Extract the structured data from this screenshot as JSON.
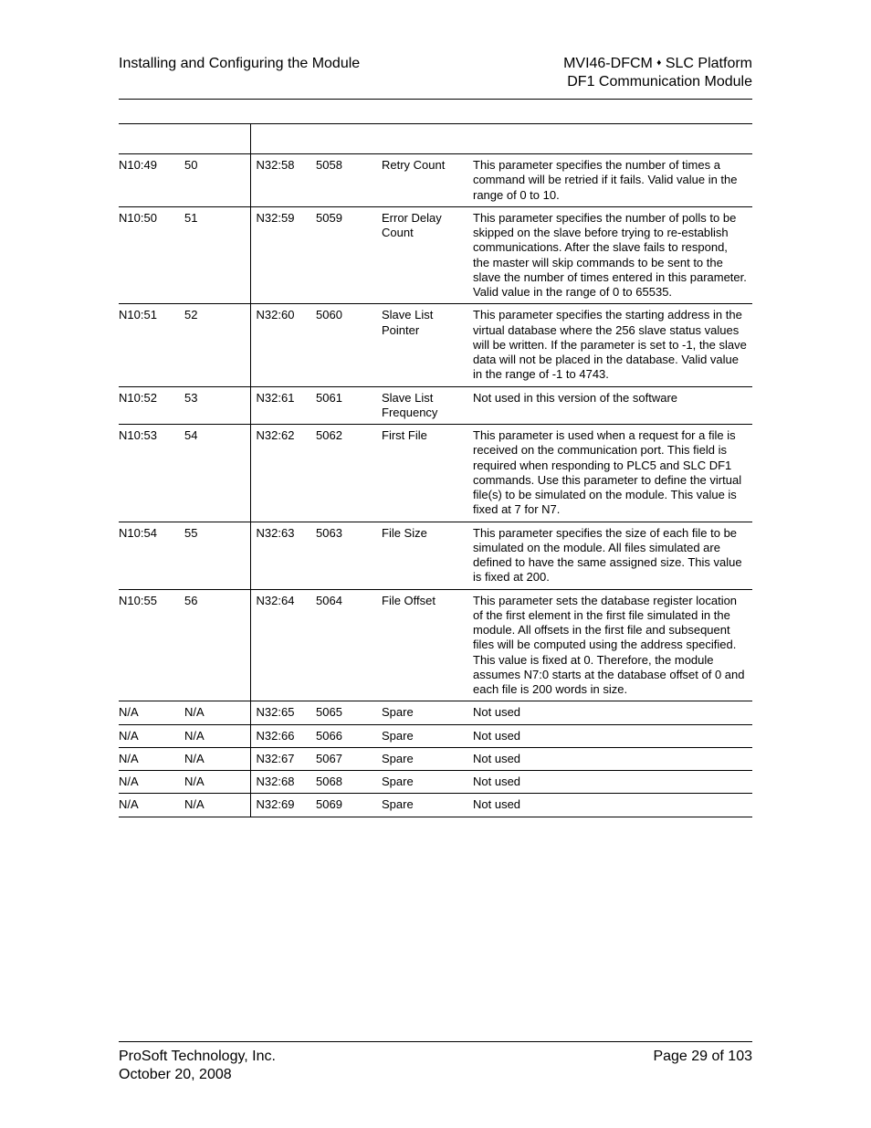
{
  "header": {
    "left": "Installing and Configuring the Module",
    "right1a": "MVI46-DFCM ",
    "right1b": " SLC Platform",
    "right2": "DF1 Communication Module"
  },
  "table": {
    "columns": [
      "",
      "",
      "",
      "",
      "",
      ""
    ],
    "rows": [
      {
        "c1": "N10:49",
        "c2": "50",
        "c3": "N32:58",
        "c4": "5058",
        "c5": "Retry Count",
        "c6": "This parameter specifies the number of times a command will be retried if it fails. Valid value in the range of 0 to 10."
      },
      {
        "c1": "N10:50",
        "c2": "51",
        "c3": "N32:59",
        "c4": "5059",
        "c5": "Error Delay Count",
        "c6": "This parameter specifies the number of polls to be skipped on the slave before trying to re-establish communications. After the slave fails to respond, the master will skip commands to be sent to the slave the number of times entered in this parameter. Valid value in the range of 0 to 65535."
      },
      {
        "c1": "N10:51",
        "c2": "52",
        "c3": "N32:60",
        "c4": "5060",
        "c5": "Slave List Pointer",
        "c6": "This parameter specifies the starting address in the virtual database where the 256 slave status values will be written. If the parameter is set to -1, the slave data will not be placed in the database. Valid value in the range of -1 to 4743."
      },
      {
        "c1": "N10:52",
        "c2": "53",
        "c3": "N32:61",
        "c4": "5061",
        "c5": "Slave List Frequency",
        "c6": "Not used in this version of the software"
      },
      {
        "c1": "N10:53",
        "c2": "54",
        "c3": "N32:62",
        "c4": "5062",
        "c5": "First File",
        "c6": "This parameter is used when a request for a file is received on the communication port. This field is required when responding to PLC5 and SLC DF1 commands. Use this parameter to define the virtual file(s) to be simulated on the module. This value is fixed at 7 for N7."
      },
      {
        "c1": "N10:54",
        "c2": "55",
        "c3": "N32:63",
        "c4": "5063",
        "c5": "File Size",
        "c6": "This parameter specifies the size of each file to be simulated on the module. All files simulated are defined to have the same assigned size. This value is fixed at 200."
      },
      {
        "c1": "N10:55",
        "c2": "56",
        "c3": "N32:64",
        "c4": "5064",
        "c5": "File Offset",
        "c6": "This parameter sets the database register location of the first element in the first file simulated in the module. All offsets in the first file and subsequent files will be computed using the address specified. This value is fixed at 0. Therefore, the module assumes N7:0 starts at the database offset of 0 and each file is 200 words in size."
      },
      {
        "c1": "N/A",
        "c2": "N/A",
        "c3": "N32:65",
        "c4": "5065",
        "c5": "Spare",
        "c6": "Not used"
      },
      {
        "c1": "N/A",
        "c2": "N/A",
        "c3": "N32:66",
        "c4": "5066",
        "c5": "Spare",
        "c6": "Not used"
      },
      {
        "c1": "N/A",
        "c2": "N/A",
        "c3": "N32:67",
        "c4": "5067",
        "c5": "Spare",
        "c6": "Not used"
      },
      {
        "c1": "N/A",
        "c2": "N/A",
        "c3": "N32:68",
        "c4": "5068",
        "c5": "Spare",
        "c6": "Not used"
      },
      {
        "c1": "N/A",
        "c2": "N/A",
        "c3": "N32:69",
        "c4": "5069",
        "c5": "Spare",
        "c6": "Not used"
      }
    ]
  },
  "footer": {
    "left1": "ProSoft Technology, Inc.",
    "left2": "October 20, 2008",
    "right": "Page 29 of 103"
  }
}
